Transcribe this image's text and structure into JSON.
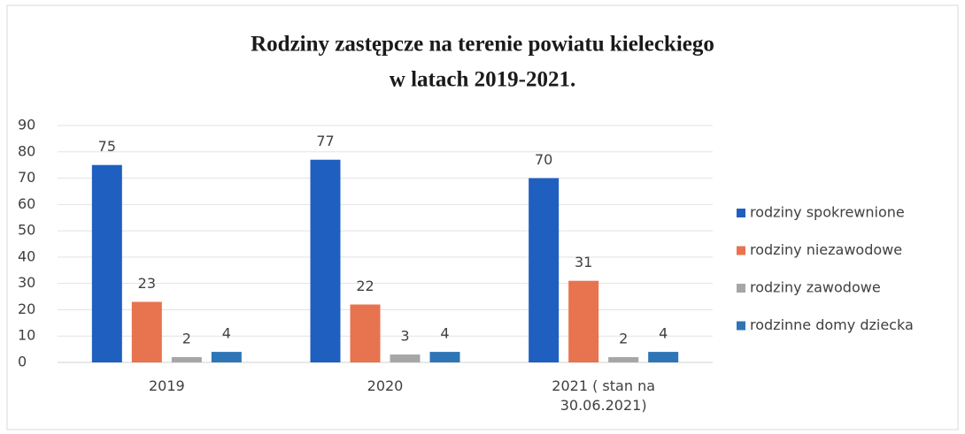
{
  "chart_data": {
    "type": "bar",
    "title": [
      "Rodziny zastępcze na terenie powiatu kieleckiego",
      "w latach 2019-2021."
    ],
    "categories": [
      "2019",
      "2020",
      "2021 ( stan na 30.06.2021)"
    ],
    "series": [
      {
        "name": "rodziny spokrewnione",
        "color": "#1f5fbf",
        "values": [
          75,
          77,
          70
        ]
      },
      {
        "name": "rodziny niezawodowe",
        "color": "#e8734f",
        "values": [
          23,
          22,
          31
        ]
      },
      {
        "name": "rodziny zawodowe",
        "color": "#a6a6a6",
        "values": [
          2,
          3,
          2
        ]
      },
      {
        "name": "rodzinne domy dziecka",
        "color": "#2e75b6",
        "values": [
          4,
          4,
          4
        ]
      }
    ],
    "ylim": [
      0,
      90
    ],
    "yticks": [
      0,
      10,
      20,
      30,
      40,
      50,
      60,
      70,
      80,
      90
    ],
    "grid": true,
    "legend": "right"
  }
}
